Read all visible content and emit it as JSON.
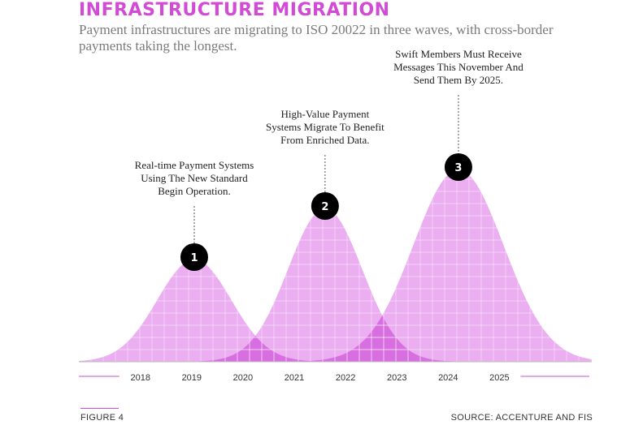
{
  "title": "INFRASTRUCTURE MIGRATION",
  "subtitle": "Payment infrastructures are migrating to ISO 20022 in three waves, with cross-border payments taking the longest.",
  "figure_label": "FIGURE 4",
  "source": "SOURCE: ACCENTURE AND FIS",
  "colors": {
    "accent": "#d24bd4",
    "wave_fill": "#e9a6f0",
    "overlap_fill": "#d86fe0",
    "marker": "#000000"
  },
  "chart_data": {
    "type": "area",
    "title": "INFRASTRUCTURE MIGRATION",
    "xlabel": "",
    "ylabel": "",
    "x_ticks": [
      "2018",
      "2019",
      "2020",
      "2021",
      "2022",
      "2023",
      "2024",
      "2025"
    ],
    "xlim": [
      2016.8,
      2026.8
    ],
    "ylim": [
      0,
      1
    ],
    "grid": true,
    "series": [
      {
        "peak_year": 2019.05,
        "spread": 0.72,
        "peak": 0.42
      },
      {
        "peak_year": 2021.6,
        "spread": 0.72,
        "peak": 0.63
      },
      {
        "peak_year": 2024.2,
        "spread": 0.88,
        "peak": 0.79
      }
    ],
    "annotations": [
      {
        "marker": "1",
        "text": [
          "Real-time Payment Systems",
          "Using The New Standard",
          "Begin Operation."
        ]
      },
      {
        "marker": "2",
        "text": [
          "High-Value Payment",
          "Systems Migrate To Benefit",
          "From Enriched Data."
        ]
      },
      {
        "marker": "3",
        "text": [
          "Swift Members Must Receive",
          "Messages This November And",
          "Send Them By 2025."
        ]
      }
    ]
  }
}
